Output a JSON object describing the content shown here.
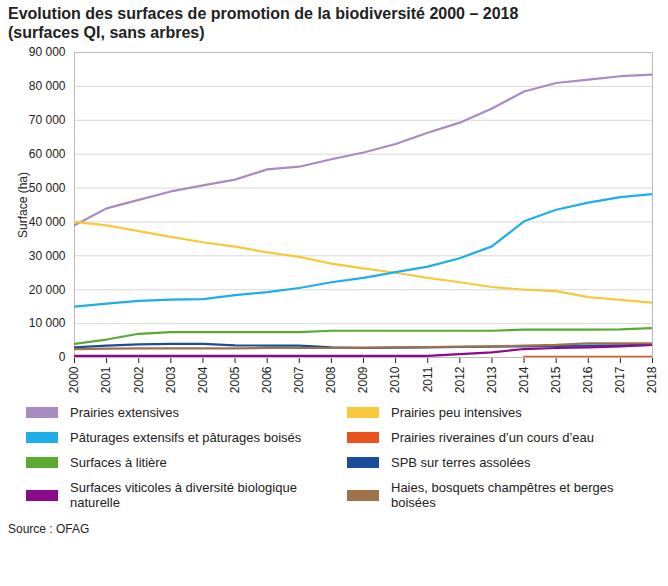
{
  "chart_data": {
    "type": "line",
    "title": "Evolution des surfaces de promotion de la biodiversité 2000 – 2018\n(surfaces QI, sans arbres)",
    "y_label": "Surface (ha)",
    "source": "Source : OFAG",
    "x": [
      2000,
      2001,
      2002,
      2003,
      2004,
      2005,
      2006,
      2007,
      2008,
      2009,
      2010,
      2011,
      2012,
      2013,
      2014,
      2015,
      2016,
      2017,
      2018
    ],
    "xlim": [
      2000,
      2018
    ],
    "xticks": [
      2000,
      2001,
      2002,
      2003,
      2004,
      2005,
      2006,
      2007,
      2008,
      2009,
      2010,
      2011,
      2012,
      2013,
      2014,
      2015,
      2016,
      2017,
      2018
    ],
    "ylim": [
      0,
      90000
    ],
    "yticks": [
      {
        "value": 0,
        "label": "0"
      },
      {
        "value": 10000,
        "label": "10 000"
      },
      {
        "value": 20000,
        "label": "20 000"
      },
      {
        "value": 30000,
        "label": "30 000"
      },
      {
        "value": 40000,
        "label": "40 000"
      },
      {
        "value": 50000,
        "label": "50 000"
      },
      {
        "value": 60000,
        "label": "60 000"
      },
      {
        "value": 70000,
        "label": "70 000"
      },
      {
        "value": 80000,
        "label": "80 000"
      },
      {
        "value": 90000,
        "label": "90 000"
      }
    ],
    "grid": true,
    "legend": "bottom",
    "series": [
      {
        "name": "Prairies extensives",
        "color": "#a98bc4",
        "values": [
          39000,
          44000,
          46500,
          49000,
          50800,
          52500,
          55500,
          56300,
          58500,
          60500,
          63000,
          66300,
          69300,
          73500,
          78500,
          81000,
          82000,
          83000,
          83500
        ]
      },
      {
        "name": "Prairies peu intensives",
        "color": "#f9c93c",
        "values": [
          40000,
          39000,
          37300,
          35600,
          34000,
          32700,
          31000,
          29700,
          27700,
          26300,
          25000,
          23500,
          22200,
          20800,
          20000,
          19600,
          17800,
          17000,
          16200
        ]
      },
      {
        "name": "Pâturages extensifs et pâturages boisés",
        "color": "#1eaee8",
        "values": [
          15000,
          15900,
          16700,
          17100,
          17200,
          18400,
          19300,
          20500,
          22200,
          23500,
          25200,
          26800,
          29300,
          32800,
          40200,
          43600,
          45700,
          47300,
          48200
        ]
      },
      {
        "name": "Prairies riveraines d’un cours d’eau",
        "color": "#e8541e",
        "values": [
          null,
          null,
          null,
          null,
          null,
          null,
          null,
          null,
          null,
          null,
          null,
          null,
          null,
          null,
          200,
          200,
          200,
          200,
          200
        ]
      },
      {
        "name": "Surfaces à litière",
        "color": "#5aaa32",
        "values": [
          4000,
          5300,
          7000,
          7500,
          7500,
          7500,
          7500,
          7500,
          7900,
          7900,
          7900,
          7900,
          7900,
          7900,
          8200,
          8200,
          8200,
          8300,
          8700
        ]
      },
      {
        "name": "SPB sur terres assolées",
        "color": "#1a4e9c",
        "values": [
          3000,
          3500,
          3900,
          4000,
          4000,
          3600,
          3500,
          3500,
          3000,
          2800,
          2900,
          3000,
          3100,
          3200,
          3300,
          3400,
          3500,
          3600,
          3700
        ]
      },
      {
        "name": "Surfaces viticoles à diversité biologique naturelle",
        "color": "#8b0a8b",
        "values": [
          500,
          500,
          500,
          500,
          500,
          500,
          500,
          500,
          500,
          500,
          500,
          500,
          1000,
          1500,
          2500,
          2800,
          3000,
          3300,
          3700
        ]
      },
      {
        "name": "Haies, bosquets champêtres et berges boisées",
        "color": "#a0724a",
        "values": [
          2500,
          2600,
          2700,
          2700,
          2700,
          2700,
          2800,
          2800,
          2800,
          2900,
          3000,
          3100,
          3200,
          3300,
          3500,
          3700,
          4200,
          4200,
          4200
        ]
      }
    ]
  }
}
